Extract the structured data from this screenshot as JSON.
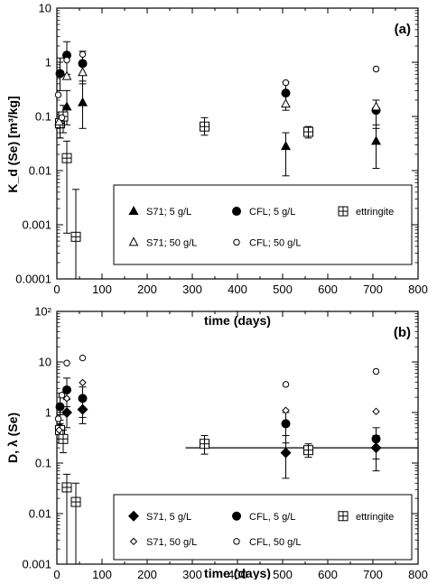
{
  "chart_data": [
    {
      "type": "scatter",
      "panel_label": "(a)",
      "xlabel": "time (days)",
      "ylabel": "K_d (Se) [m³/kg]",
      "xscale": "linear",
      "yscale": "log",
      "xlim": [
        0,
        800
      ],
      "ylim": [
        0.0001,
        10
      ],
      "xticks": [
        "0",
        "100",
        "200",
        "300",
        "400",
        "500",
        "600",
        "700",
        "800"
      ],
      "yticks": [
        "10",
        "1",
        "0.1",
        "0.01",
        "0.001",
        "0.0001"
      ],
      "legend_position": "bottom-right",
      "series": [
        {
          "name": "S71; 5 g/L",
          "marker": "filled-triangle",
          "points": [
            {
              "x": 7,
              "y": 0.07,
              "lo": 0.04,
              "hi": 0.12
            },
            {
              "x": 22,
              "y": 0.15,
              "lo": 0.07,
              "hi": 0.3
            },
            {
              "x": 57,
              "y": 0.18,
              "lo": 0.06,
              "hi": 0.45
            },
            {
              "x": 507,
              "y": 0.028,
              "lo": 0.008,
              "hi": 0.05
            },
            {
              "x": 707,
              "y": 0.035,
              "lo": 0.011,
              "hi": 0.07
            }
          ]
        },
        {
          "name": "CFL; 5 g/L",
          "marker": "filled-circle",
          "points": [
            {
              "x": 7,
              "y": 0.62,
              "lo": 0.3,
              "hi": 1.2
            },
            {
              "x": 22,
              "y": 1.35,
              "lo": 0.6,
              "hi": 2.4
            },
            {
              "x": 57,
              "y": 0.95,
              "lo": 0.4,
              "hi": 1.6
            },
            {
              "x": 507,
              "y": 0.27,
              "lo": 0.13,
              "hi": 0.43
            },
            {
              "x": 707,
              "y": 0.13,
              "lo": 0.06,
              "hi": 0.2
            }
          ]
        },
        {
          "name": "ettringite",
          "marker": "crossed-square",
          "points": [
            {
              "x": 7,
              "y": 0.075,
              "lo": 0.04,
              "hi": 0.11
            },
            {
              "x": 14,
              "y": 0.1,
              "lo": 0.05,
              "hi": 0.16
            },
            {
              "x": 22,
              "y": 0.017,
              "lo": 0.0007,
              "hi": 0.035
            },
            {
              "x": 42,
              "y": 0.0006,
              "lo": 0.0001,
              "hi": 0.0045
            },
            {
              "x": 327,
              "y": 0.065,
              "lo": 0.045,
              "hi": 0.095
            },
            {
              "x": 557,
              "y": 0.052,
              "lo": 0.04,
              "hi": 0.065
            }
          ]
        },
        {
          "name": "S71; 50 g/L",
          "marker": "open-triangle",
          "points": [
            {
              "x": 5,
              "y": 0.08
            },
            {
              "x": 22,
              "y": 0.55
            },
            {
              "x": 57,
              "y": 0.65
            },
            {
              "x": 507,
              "y": 0.17
            },
            {
              "x": 707,
              "y": 0.15
            }
          ]
        },
        {
          "name": "CFL; 50 g/L",
          "marker": "open-circle",
          "points": [
            {
              "x": 3,
              "y": 0.25
            },
            {
              "x": 11,
              "y": 0.095
            },
            {
              "x": 22,
              "y": 1.1
            },
            {
              "x": 57,
              "y": 1.4
            },
            {
              "x": 507,
              "y": 0.42
            },
            {
              "x": 707,
              "y": 0.75
            }
          ]
        }
      ]
    },
    {
      "type": "scatter",
      "panel_label": "(b)",
      "xlabel": "time (days)",
      "ylabel": "D, λ (Se)",
      "xscale": "linear",
      "yscale": "log",
      "xlim": [
        0,
        800
      ],
      "ylim": [
        0.001,
        100
      ],
      "xticks": [
        "0",
        "100",
        "200",
        "300",
        "400",
        "500",
        "600",
        "700",
        "800"
      ],
      "yticks": [
        "10²",
        "10",
        "1",
        "0.1",
        "0.01",
        "0.001"
      ],
      "reference_line": {
        "y": 0.2,
        "x_from": 285,
        "x_to": 800
      },
      "legend_position": "bottom-right",
      "series": [
        {
          "name": "S71, 5 g/L",
          "marker": "filled-diamond",
          "points": [
            {
              "x": 7,
              "y": 0.5,
              "lo": 0.3,
              "hi": 0.9
            },
            {
              "x": 22,
              "y": 1.0,
              "lo": 0.5,
              "hi": 1.8
            },
            {
              "x": 57,
              "y": 1.15,
              "lo": 0.6,
              "hi": 1.9
            },
            {
              "x": 507,
              "y": 0.16,
              "lo": 0.05,
              "hi": 0.35
            },
            {
              "x": 707,
              "y": 0.2,
              "lo": 0.07,
              "hi": 0.35
            }
          ]
        },
        {
          "name": "CFL, 5 g/L",
          "marker": "filled-circle",
          "points": [
            {
              "x": 7,
              "y": 1.3,
              "lo": 0.6,
              "hi": 2.4
            },
            {
              "x": 22,
              "y": 2.8,
              "lo": 1.3,
              "hi": 4.8
            },
            {
              "x": 57,
              "y": 1.9,
              "lo": 0.8,
              "hi": 3.2
            },
            {
              "x": 507,
              "y": 0.6,
              "lo": 0.25,
              "hi": 1.0
            },
            {
              "x": 707,
              "y": 0.3,
              "lo": 0.12,
              "hi": 0.5
            }
          ]
        },
        {
          "name": "ettringite",
          "marker": "crossed-square",
          "points": [
            {
              "x": 7,
              "y": 0.45,
              "lo": 0.25,
              "hi": 0.7
            },
            {
              "x": 14,
              "y": 0.3,
              "lo": 0.16,
              "hi": 0.45
            },
            {
              "x": 22,
              "y": 0.033,
              "lo": 0.001,
              "hi": 0.06
            },
            {
              "x": 42,
              "y": 0.017,
              "lo": 0.001,
              "hi": 0.04
            },
            {
              "x": 327,
              "y": 0.24,
              "lo": 0.15,
              "hi": 0.35
            },
            {
              "x": 557,
              "y": 0.18,
              "lo": 0.13,
              "hi": 0.24
            }
          ]
        },
        {
          "name": "S71, 50 g/L",
          "marker": "open-diamond",
          "points": [
            {
              "x": 5,
              "y": 0.45
            },
            {
              "x": 22,
              "y": 1.9
            },
            {
              "x": 57,
              "y": 3.9
            },
            {
              "x": 507,
              "y": 1.1
            },
            {
              "x": 707,
              "y": 1.05
            }
          ]
        },
        {
          "name": "CFL, 50 g/L",
          "marker": "open-circle",
          "points": [
            {
              "x": 3,
              "y": 0.75
            },
            {
              "x": 11,
              "y": 2.2
            },
            {
              "x": 22,
              "y": 9.5
            },
            {
              "x": 57,
              "y": 12
            },
            {
              "x": 507,
              "y": 3.6
            },
            {
              "x": 707,
              "y": 6.5
            }
          ]
        }
      ]
    }
  ]
}
